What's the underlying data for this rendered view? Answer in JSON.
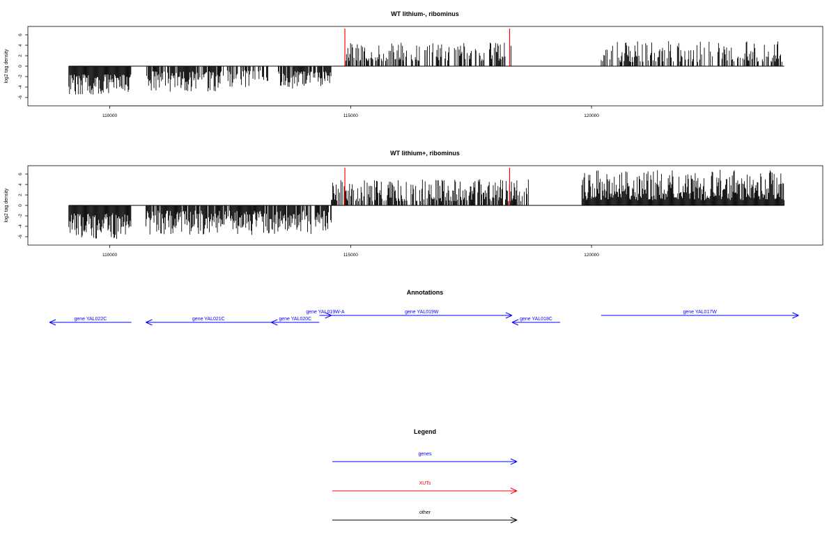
{
  "chart_data": [
    {
      "type": "bar",
      "title": "WT lithium-, ribominus",
      "ylabel": "log2 tag density",
      "xlim": [
        108300,
        124800
      ],
      "ylim": [
        -7.6,
        7.6
      ],
      "x_ticks": [
        110000,
        115000,
        120000
      ],
      "y_ticks": [
        -6,
        -4,
        -2,
        0,
        2,
        4,
        6
      ],
      "baseline": {
        "x_range": [
          109150,
          124000
        ],
        "y": 0
      },
      "grid": false,
      "series": [
        {
          "values_from_density_profile": true,
          "color": "#000000"
        }
      ],
      "markers": [
        {
          "x": 114880,
          "y": 7.2,
          "color": "#ff0000"
        },
        {
          "x": 118300,
          "y": 7.2,
          "color": "#ff0000"
        }
      ],
      "segments": [
        {
          "x_start": 109150,
          "x_end": 110450,
          "sign": -1,
          "density": 1.0,
          "amp_min": 1.5,
          "amp_max": 5.5,
          "step": 14
        },
        {
          "x_start": 110750,
          "x_end": 112300,
          "sign": -1,
          "density": 0.85,
          "amp_min": 1.0,
          "amp_max": 5.0,
          "step": 14
        },
        {
          "x_start": 112300,
          "x_end": 113300,
          "sign": -1,
          "density": 0.6,
          "amp_min": 0.8,
          "amp_max": 4.0,
          "step": 14
        },
        {
          "x_start": 113500,
          "x_end": 114600,
          "sign": -1,
          "density": 0.8,
          "amp_min": 1.0,
          "amp_max": 4.5,
          "step": 14
        },
        {
          "x_start": 114900,
          "x_end": 118350,
          "sign": 1,
          "density": 0.55,
          "amp_min": 1.0,
          "amp_max": 4.5,
          "step": 14
        },
        {
          "x_start": 120200,
          "x_end": 124000,
          "sign": 1,
          "density": 0.55,
          "amp_min": 0.8,
          "amp_max": 4.8,
          "step": 14
        }
      ]
    },
    {
      "type": "bar",
      "title": "WT lithium+, ribominus",
      "ylabel": "log2 tag density",
      "xlim": [
        108300,
        124800
      ],
      "ylim": [
        -7.6,
        7.6
      ],
      "x_ticks": [
        110000,
        115000,
        120000
      ],
      "y_ticks": [
        -6,
        -4,
        -2,
        0,
        2,
        4,
        6
      ],
      "baseline": {
        "x_range": [
          109150,
          124000
        ],
        "y": 0
      },
      "grid": false,
      "series": [
        {
          "values_from_density_profile": true,
          "color": "#000000"
        }
      ],
      "markers": [
        {
          "x": 114880,
          "y": 7.2,
          "color": "#ff0000"
        },
        {
          "x": 118300,
          "y": 7.2,
          "color": "#ff0000"
        }
      ],
      "segments": [
        {
          "x_start": 109150,
          "x_end": 110450,
          "sign": -1,
          "density": 1.0,
          "amp_min": 1.5,
          "amp_max": 6.5,
          "step": 14
        },
        {
          "x_start": 110750,
          "x_end": 113000,
          "sign": -1,
          "density": 0.95,
          "amp_min": 1.0,
          "amp_max": 5.8,
          "step": 14
        },
        {
          "x_start": 113000,
          "x_end": 114600,
          "sign": -1,
          "density": 0.9,
          "amp_min": 1.0,
          "amp_max": 5.5,
          "step": 14
        },
        {
          "x_start": 114600,
          "x_end": 118700,
          "sign": 1,
          "density": 0.75,
          "amp_min": 0.8,
          "amp_max": 5.0,
          "step": 14
        },
        {
          "x_start": 119800,
          "x_end": 124000,
          "sign": 1,
          "density": 1.0,
          "amp_min": 1.0,
          "amp_max": 6.8,
          "step": 14
        }
      ]
    }
  ],
  "annotations": {
    "title": "Annotations",
    "genes": [
      {
        "label": "gene YAL022C",
        "x_start": 110450,
        "x_end": 108750,
        "row": "lower"
      },
      {
        "label": "gene YAL021C",
        "x_start": 113350,
        "x_end": 110750,
        "row": "lower"
      },
      {
        "label": "gene YAL020C",
        "x_start": 114350,
        "x_end": 113350,
        "row": "lower"
      },
      {
        "label": "gene YAL019W-A",
        "x_start": 114350,
        "x_end": 114600,
        "row": "upper"
      },
      {
        "label": "gene YAL019W",
        "x_start": 114600,
        "x_end": 118350,
        "row": "upper"
      },
      {
        "label": "gene YAL018C",
        "x_start": 119350,
        "x_end": 118350,
        "row": "lower"
      },
      {
        "label": "gene YAL017W",
        "x_start": 120200,
        "x_end": 124300,
        "row": "upper"
      }
    ],
    "color": "#0000ff"
  },
  "legend": {
    "title": "Legend",
    "items": [
      {
        "label": "genes",
        "color": "#0000ff"
      },
      {
        "label": "XUTs",
        "color": "#ff0000"
      },
      {
        "label": "other",
        "color": "#000000"
      }
    ]
  }
}
